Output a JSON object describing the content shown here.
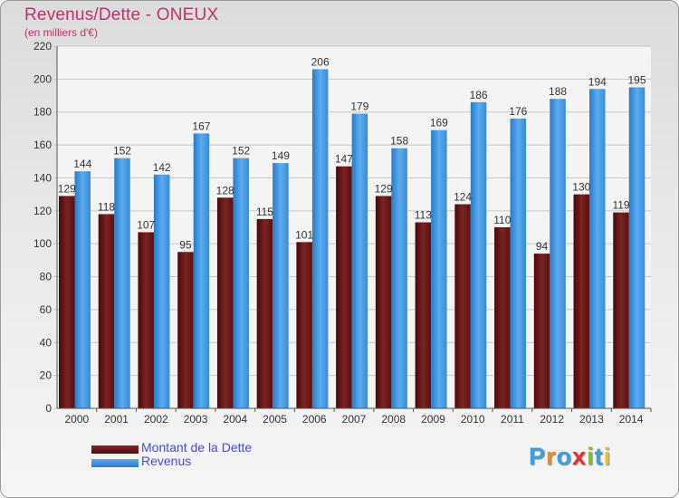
{
  "chart_data": {
    "type": "bar",
    "title": "Revenus/Dette - ONEUX",
    "subtitle": "(en milliers d'€)",
    "categories": [
      "2000",
      "2001",
      "2002",
      "2003",
      "2004",
      "2005",
      "2006",
      "2007",
      "2008",
      "2009",
      "2010",
      "2011",
      "2012",
      "2013",
      "2014"
    ],
    "series": [
      {
        "name": "Montant de la Dette",
        "values": [
          129,
          118,
          107,
          95,
          128,
          115,
          101,
          147,
          129,
          113,
          124,
          110,
          94,
          130,
          119
        ],
        "color": "#6a1a1a"
      },
      {
        "name": "Revenus",
        "values": [
          144,
          152,
          142,
          167,
          152,
          149,
          206,
          179,
          158,
          169,
          186,
          176,
          188,
          194,
          195
        ],
        "color": "#3a90e0"
      }
    ],
    "ylim": [
      0,
      220
    ],
    "yticks": [
      0,
      20,
      40,
      60,
      80,
      100,
      120,
      140,
      160,
      180,
      200,
      220
    ],
    "grid": true,
    "legend": "bottom-left"
  },
  "legend": {
    "debt_label": "Montant de la Dette",
    "revenue_label": "Revenus"
  },
  "logo": {
    "letters": [
      "P",
      "r",
      "o",
      "x",
      "i",
      "t",
      "i"
    ],
    "colors": [
      "#3aa0e0",
      "#f08a20",
      "#3aa0e0",
      "#e03030",
      "#80c030",
      "#3aa0e0",
      "#f0c020"
    ]
  }
}
